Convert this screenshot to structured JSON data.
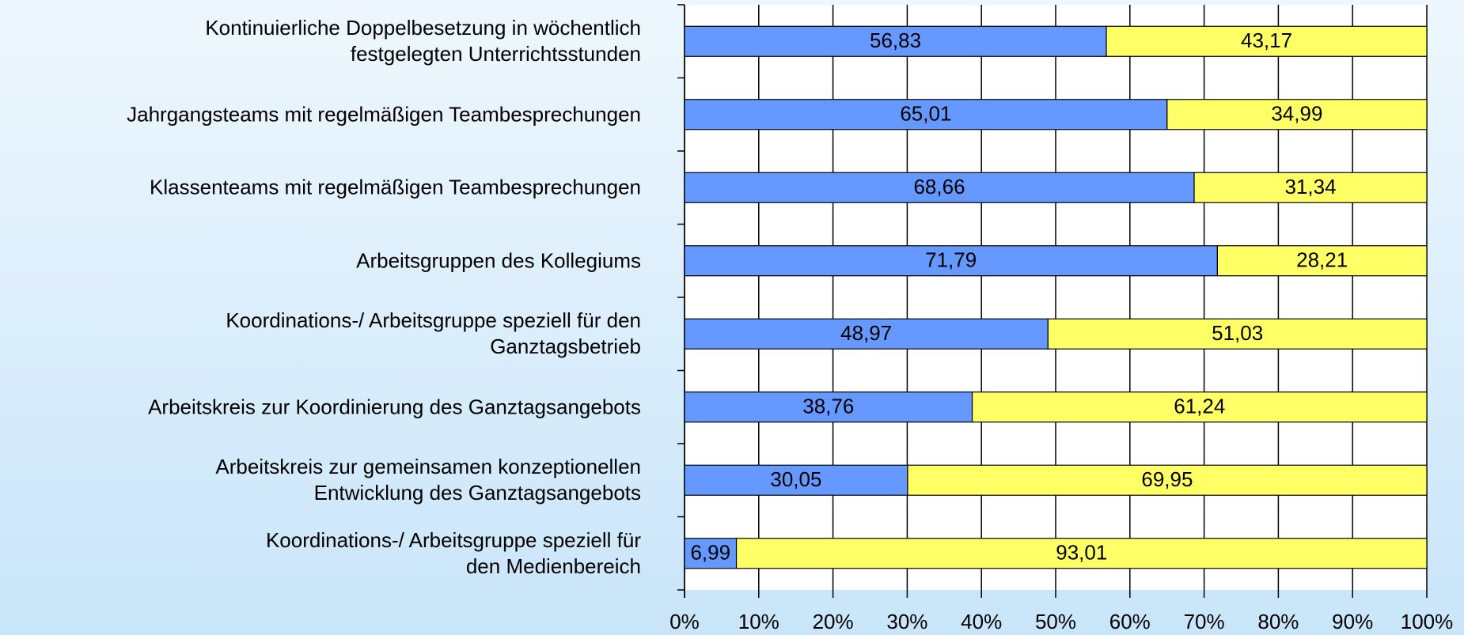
{
  "chart_data": {
    "type": "stacked-barh",
    "categories": [
      "Kontinuierliche Doppelbesetzung in wöchentlich\nfestgelegten Unterrichtsstunden",
      "Jahrgangsteams mit regelmäßigen Teambesprechungen",
      "Klassenteams mit regelmäßigen Teambesprechungen",
      "Arbeitsgruppen des Kollegiums",
      "Koordinations-/ Arbeitsgruppe speziell für den\nGanztagsbetrieb",
      "Arbeitskreis zur Koordinierung des Ganztagsangebots",
      "Arbeitskreis zur gemeinsamen konzeptionellen\nEntwicklung des Ganztagsangebots",
      "Koordinations-/ Arbeitsgruppe speziell für\nden Medienbereich"
    ],
    "series": [
      {
        "color": "#6699ff",
        "values": [
          56.83,
          65.01,
          68.66,
          71.79,
          48.97,
          38.76,
          30.05,
          6.99
        ],
        "value_labels": [
          "56,83",
          "65,01",
          "68,66",
          "71,79",
          "48,97",
          "38,76",
          "30,05",
          "6,99"
        ]
      },
      {
        "color": "#ffff66",
        "values": [
          43.17,
          34.99,
          31.34,
          28.21,
          51.03,
          61.24,
          69.95,
          93.01
        ],
        "value_labels": [
          "43,17",
          "34,99",
          "31,34",
          "28,21",
          "51,03",
          "61,24",
          "69,95",
          "93,01"
        ]
      }
    ],
    "xlim": [
      0,
      100
    ],
    "xticks": [
      {
        "value": 0,
        "label": "0%"
      },
      {
        "value": 10,
        "label": "10%"
      },
      {
        "value": 20,
        "label": "20%"
      },
      {
        "value": 30,
        "label": "30%"
      },
      {
        "value": 40,
        "label": "40%"
      },
      {
        "value": 50,
        "label": "50%"
      },
      {
        "value": 60,
        "label": "60%"
      },
      {
        "value": 70,
        "label": "70%"
      },
      {
        "value": 80,
        "label": "80%"
      },
      {
        "value": 90,
        "label": "90%"
      },
      {
        "value": 100,
        "label": "100%"
      }
    ],
    "grid": true
  }
}
